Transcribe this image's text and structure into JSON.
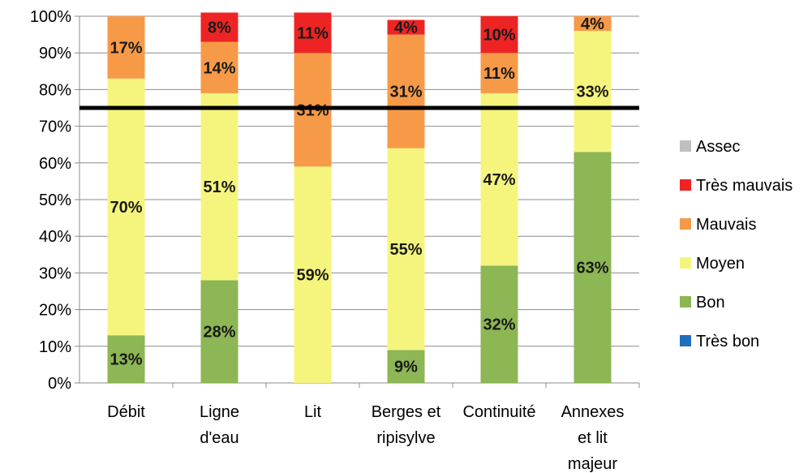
{
  "chart_data": {
    "type": "bar",
    "stacked": true,
    "categories": [
      [
        "Débit"
      ],
      [
        "Ligne",
        "d'eau"
      ],
      [
        "Lit"
      ],
      [
        "Berges et",
        "ripisylve"
      ],
      [
        "Continuité"
      ],
      [
        "Annexes",
        "et lit",
        "majeur"
      ]
    ],
    "series": [
      {
        "name": "Très bon",
        "color": "#1f6fbf",
        "values": [
          0,
          0,
          0,
          0,
          0,
          0
        ],
        "labels": [
          "",
          "",
          "",
          "",
          "",
          ""
        ]
      },
      {
        "name": "Bon",
        "color": "#8db654",
        "values": [
          13,
          28,
          0,
          9,
          32,
          63
        ],
        "labels": [
          "13%",
          "28%",
          "",
          "9%",
          "32%",
          "63%"
        ]
      },
      {
        "name": "Moyen",
        "color": "#f5f57d",
        "values": [
          70,
          51,
          59,
          55,
          47,
          33
        ],
        "labels": [
          "70%",
          "51%",
          "59%",
          "55%",
          "47%",
          "33%"
        ]
      },
      {
        "name": "Mauvais",
        "color": "#f79a48",
        "values": [
          17,
          14,
          31,
          31,
          11,
          4
        ],
        "labels": [
          "17%",
          "14%",
          "31%",
          "31%",
          "11%",
          "4%"
        ]
      },
      {
        "name": "Très mauvais",
        "color": "#ee2424",
        "values": [
          0,
          8,
          11,
          4,
          10,
          0
        ],
        "labels": [
          "",
          "8%",
          "11%",
          "4%",
          "10%",
          ""
        ]
      },
      {
        "name": "Assec",
        "color": "#bfbfbf",
        "values": [
          0,
          0,
          0,
          0,
          0,
          0
        ],
        "labels": [
          "",
          "",
          "",
          "",
          "",
          ""
        ]
      }
    ],
    "ylim": [
      0,
      100
    ],
    "yticks": [
      "0%",
      "10%",
      "20%",
      "30%",
      "40%",
      "50%",
      "60%",
      "70%",
      "80%",
      "90%",
      "100%"
    ],
    "grid": true,
    "legend_position": "right",
    "legend_order": [
      "Assec",
      "Très mauvais",
      "Mauvais",
      "Moyen",
      "Bon",
      "Très bon"
    ],
    "reference_line": {
      "value": 75,
      "color": "#000000"
    }
  }
}
